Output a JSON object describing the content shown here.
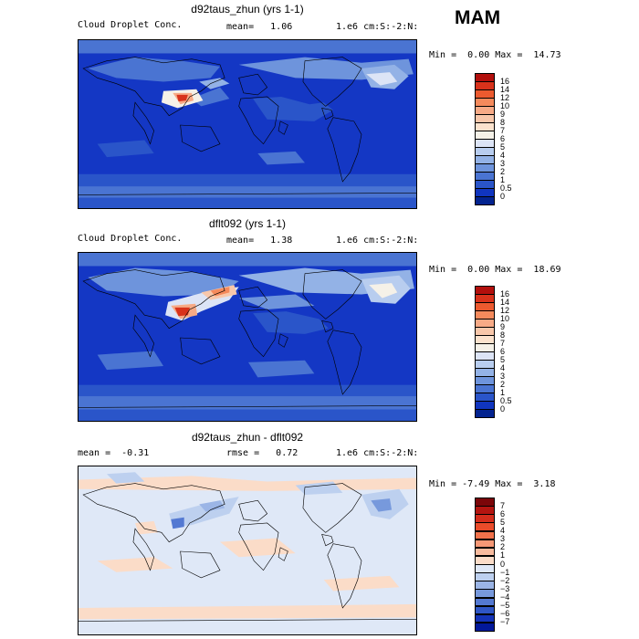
{
  "season": "MAM",
  "chart_data": [
    {
      "type": "heatmap",
      "title": "d92taus_zhun (yrs 1-1)",
      "left_label": "Cloud Droplet Conc.",
      "mean_text": "mean=   1.06",
      "units": "1.e6 cm:S:-2:N:",
      "min": "0.00",
      "max": "14.73",
      "colorbar": {
        "labels": [
          "16",
          "14",
          "12",
          "10",
          "9",
          "8",
          "7",
          "6",
          "5",
          "4",
          "3",
          "2",
          "1",
          "0.5",
          "0"
        ],
        "colors": [
          "#b20f0c",
          "#d8321b",
          "#ec5a2f",
          "#f58a5c",
          "#f7aa86",
          "#f8c7aa",
          "#fbe2cd",
          "#f5f1e8",
          "#dce4f6",
          "#b8cdef",
          "#93b2e6",
          "#6e94dc",
          "#4a74d2",
          "#2a55c9",
          "#1035bf",
          "#03238f"
        ]
      }
    },
    {
      "type": "heatmap",
      "title": "dflt092 (yrs 1-1)",
      "left_label": "Cloud Droplet Conc.",
      "mean_text": "mean=   1.38",
      "units": "1.e6 cm:S:-2:N:",
      "min": "0.00",
      "max": "18.69",
      "colorbar": {
        "labels": [
          "16",
          "14",
          "12",
          "10",
          "9",
          "8",
          "7",
          "6",
          "5",
          "4",
          "3",
          "2",
          "1",
          "0.5",
          "0"
        ],
        "colors": [
          "#b20f0c",
          "#d8321b",
          "#ec5a2f",
          "#f58a5c",
          "#f7aa86",
          "#f8c7aa",
          "#fbe2cd",
          "#f5f1e8",
          "#dce4f6",
          "#b8cdef",
          "#93b2e6",
          "#6e94dc",
          "#4a74d2",
          "#2a55c9",
          "#1035bf",
          "#03238f"
        ]
      }
    },
    {
      "type": "heatmap",
      "title": "d92taus_zhun - dflt092",
      "left_label": "mean =  -0.31",
      "mean_text": "rmse =   0.72",
      "units": "1.e6 cm:S:-2:N:",
      "min": "-7.49",
      "max": "3.18",
      "colorbar": {
        "labels": [
          "7",
          "6",
          "5",
          "4",
          "3",
          "2",
          "1",
          "0",
          "−1",
          "−2",
          "−3",
          "−4",
          "−5",
          "−6",
          "−7"
        ],
        "colors": [
          "#7b0609",
          "#b41510",
          "#d42d1c",
          "#ea4c2a",
          "#f2724b",
          "#f69876",
          "#f8bb9e",
          "#fbdcc8",
          "#dfe8f7",
          "#bdd0ef",
          "#9bb5e6",
          "#7799dc",
          "#5479d2",
          "#2f56c6",
          "#1433b8",
          "#02189a"
        ]
      }
    }
  ]
}
